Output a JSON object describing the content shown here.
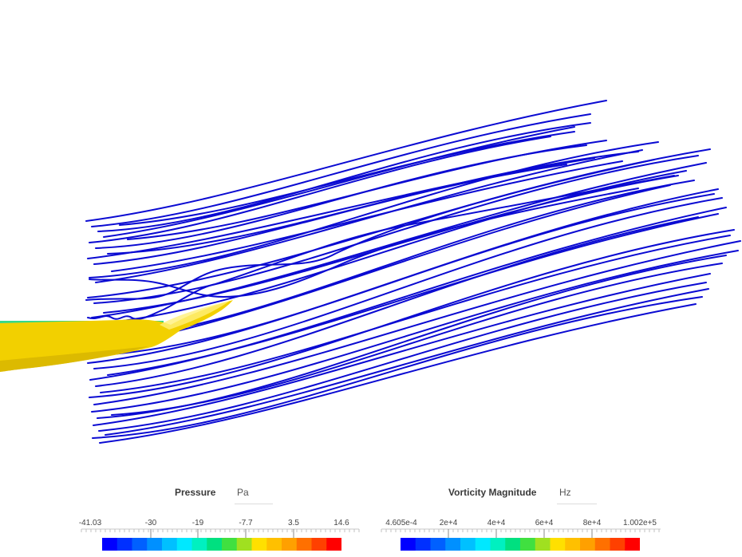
{
  "scene": {
    "colors": {
      "streamline": "#0a0ad2",
      "body": "#f2d000",
      "body_highlight": "#fff07a",
      "body_shadow": "#d6b400",
      "surface_edge": "#35d98a"
    }
  },
  "legends": {
    "pressure": {
      "title": "Pressure",
      "unit": "Pa",
      "ticks": [
        "-41.03",
        "-30",
        "-19",
        "-7.7",
        "3.5",
        "14.6"
      ],
      "range": [
        -41.03,
        14.6
      ]
    },
    "vorticity": {
      "title": "Vorticity Magnitude",
      "unit": "Hz",
      "ticks": [
        "4.605e-4",
        "2e+4",
        "4e+4",
        "6e+4",
        "8e+4",
        "1.002e+5"
      ],
      "range": [
        0.0004605,
        100200
      ]
    },
    "colormap": [
      "#0000ff",
      "#0030ff",
      "#0060ff",
      "#0090ff",
      "#00c0ff",
      "#00e8ff",
      "#00f0c0",
      "#00e080",
      "#40e040",
      "#a0e020",
      "#ffe000",
      "#ffc000",
      "#ffa000",
      "#ff7000",
      "#ff4000",
      "#ff0000"
    ]
  }
}
